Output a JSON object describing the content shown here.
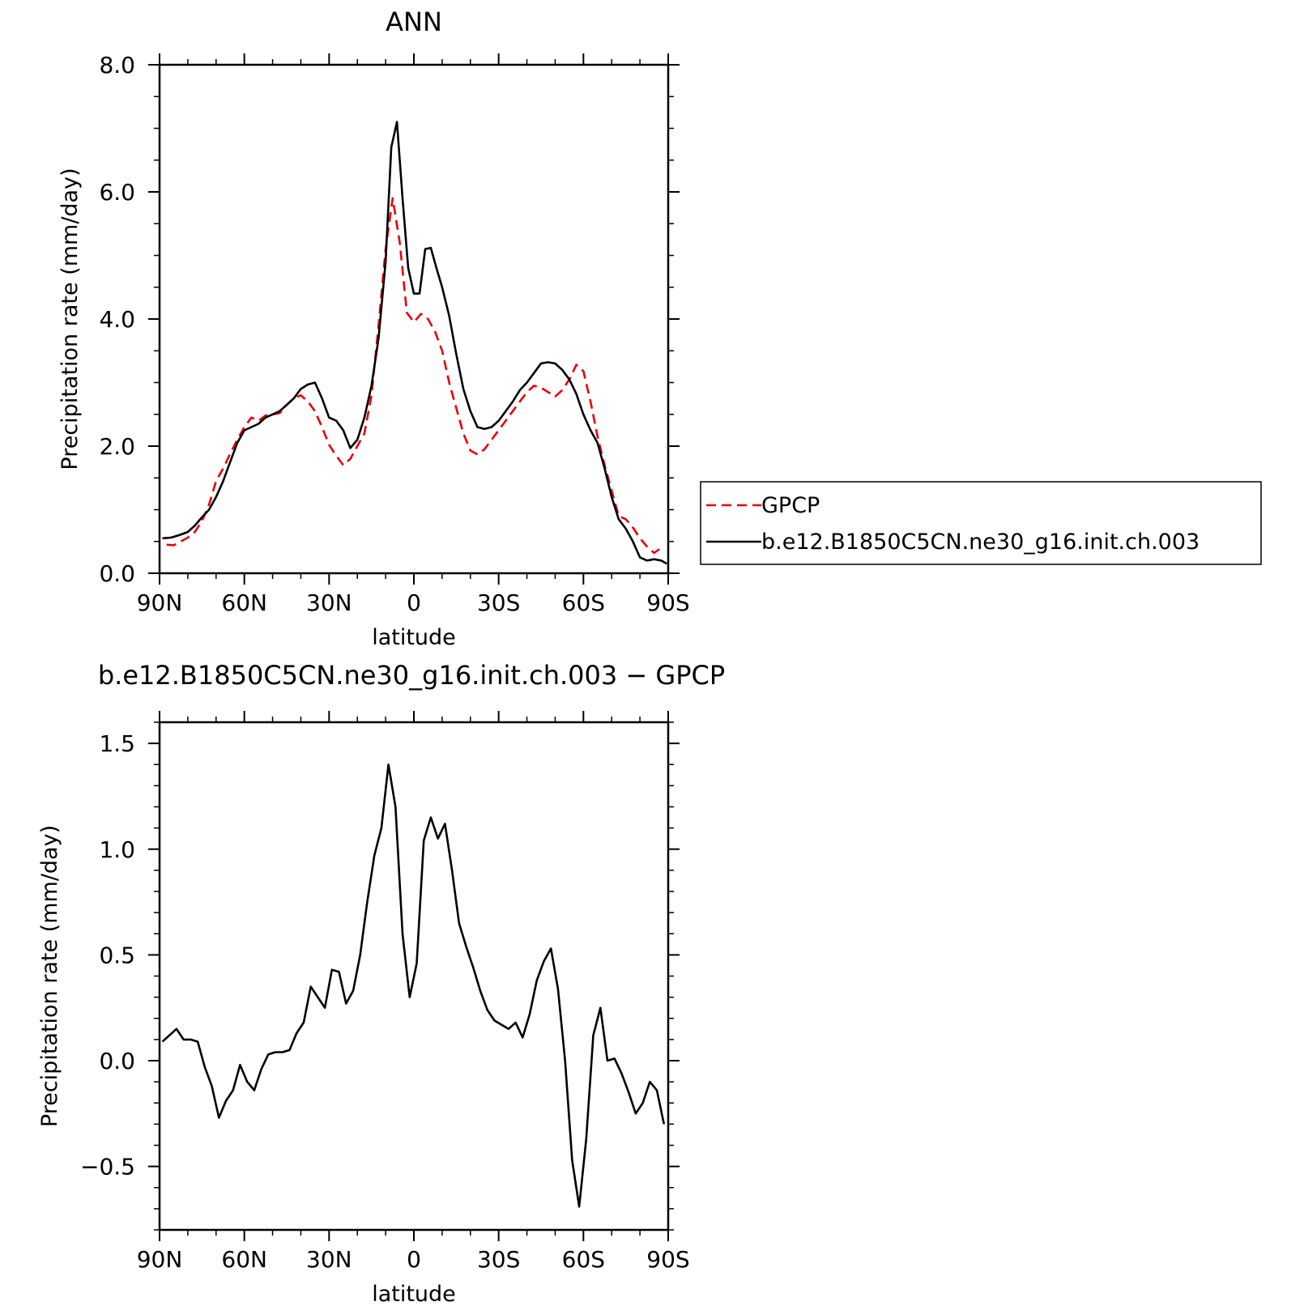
{
  "chart_data": [
    {
      "type": "line",
      "title": "ANN",
      "xlabel": "latitude",
      "ylabel": "Precipitation rate (mm/day)",
      "xlim": [
        90,
        -90
      ],
      "ylim": [
        0,
        8
      ],
      "xticks": [
        {
          "value": 90,
          "label": "90N"
        },
        {
          "value": 60,
          "label": "60N"
        },
        {
          "value": 30,
          "label": "30N"
        },
        {
          "value": 0,
          "label": "0"
        },
        {
          "value": -30,
          "label": "30S"
        },
        {
          "value": -60,
          "label": "60S"
        },
        {
          "value": -90,
          "label": "90S"
        }
      ],
      "yticks": [
        {
          "value": 0,
          "label": "0.0"
        },
        {
          "value": 2,
          "label": "2.0"
        },
        {
          "value": 4,
          "label": "4.0"
        },
        {
          "value": 6,
          "label": "6.0"
        },
        {
          "value": 8,
          "label": "8.0"
        }
      ],
      "legend_position": "right",
      "series": [
        {
          "name": "GPCP",
          "color": "#e8000b",
          "style": "dashed",
          "points": [
            [
              87.5,
              0.45
            ],
            [
              85,
              0.44
            ],
            [
              82.5,
              0.5
            ],
            [
              80,
              0.56
            ],
            [
              77.5,
              0.65
            ],
            [
              75,
              0.82
            ],
            [
              72.5,
              1.08
            ],
            [
              70,
              1.45
            ],
            [
              67.5,
              1.65
            ],
            [
              65,
              1.88
            ],
            [
              62.5,
              2.1
            ],
            [
              60,
              2.3
            ],
            [
              57.5,
              2.45
            ],
            [
              55,
              2.4
            ],
            [
              52.5,
              2.48
            ],
            [
              50,
              2.5
            ],
            [
              47.5,
              2.52
            ],
            [
              45,
              2.65
            ],
            [
              42.5,
              2.75
            ],
            [
              40,
              2.8
            ],
            [
              37.5,
              2.7
            ],
            [
              35,
              2.55
            ],
            [
              32.5,
              2.3
            ],
            [
              30,
              2.02
            ],
            [
              27.5,
              1.85
            ],
            [
              25,
              1.7
            ],
            [
              22.5,
              1.8
            ],
            [
              20,
              2.0
            ],
            [
              17.5,
              2.2
            ],
            [
              15,
              2.8
            ],
            [
              12.5,
              3.9
            ],
            [
              10,
              5.1
            ],
            [
              7.5,
              5.9
            ],
            [
              5,
              5.2
            ],
            [
              2.5,
              4.1
            ],
            [
              0,
              3.95
            ],
            [
              -2.5,
              4.08
            ],
            [
              -5,
              4.0
            ],
            [
              -7.5,
              3.8
            ],
            [
              -10,
              3.5
            ],
            [
              -12.5,
              3.0
            ],
            [
              -15,
              2.6
            ],
            [
              -17.5,
              2.2
            ],
            [
              -20,
              1.93
            ],
            [
              -22.5,
              1.87
            ],
            [
              -25,
              1.95
            ],
            [
              -27.5,
              2.1
            ],
            [
              -30,
              2.25
            ],
            [
              -32.5,
              2.4
            ],
            [
              -35,
              2.55
            ],
            [
              -37.5,
              2.7
            ],
            [
              -40,
              2.85
            ],
            [
              -42.5,
              2.95
            ],
            [
              -45,
              2.92
            ],
            [
              -47.5,
              2.85
            ],
            [
              -50,
              2.78
            ],
            [
              -52.5,
              2.88
            ],
            [
              -55,
              3.05
            ],
            [
              -57.5,
              3.28
            ],
            [
              -60,
              3.18
            ],
            [
              -62.5,
              2.7
            ],
            [
              -65,
              2.15
            ],
            [
              -67.5,
              1.7
            ],
            [
              -70,
              1.3
            ],
            [
              -72.5,
              0.9
            ],
            [
              -75,
              0.85
            ],
            [
              -77.5,
              0.72
            ],
            [
              -80,
              0.55
            ],
            [
              -82.5,
              0.42
            ],
            [
              -85,
              0.32
            ],
            [
              -87.5,
              0.4
            ]
          ]
        },
        {
          "name": "b.e12.B1850C5CN.ne30_g16.init.ch.003",
          "color": "#000000",
          "style": "solid",
          "points": [
            [
              89,
              0.55
            ],
            [
              86,
              0.56
            ],
            [
              83,
              0.6
            ],
            [
              80,
              0.65
            ],
            [
              77.5,
              0.75
            ],
            [
              75,
              0.88
            ],
            [
              72.5,
              1.0
            ],
            [
              70,
              1.2
            ],
            [
              67.5,
              1.45
            ],
            [
              65,
              1.75
            ],
            [
              62.5,
              2.05
            ],
            [
              60,
              2.25
            ],
            [
              57.5,
              2.3
            ],
            [
              55,
              2.35
            ],
            [
              52.5,
              2.45
            ],
            [
              50,
              2.5
            ],
            [
              47.5,
              2.55
            ],
            [
              45,
              2.65
            ],
            [
              42.5,
              2.75
            ],
            [
              40,
              2.9
            ],
            [
              37.5,
              2.97
            ],
            [
              35,
              3.0
            ],
            [
              32.5,
              2.75
            ],
            [
              30,
              2.45
            ],
            [
              27.5,
              2.4
            ],
            [
              25,
              2.25
            ],
            [
              22.5,
              1.97
            ],
            [
              20,
              2.1
            ],
            [
              17.5,
              2.45
            ],
            [
              15,
              2.95
            ],
            [
              12.5,
              3.7
            ],
            [
              10,
              4.9
            ],
            [
              8,
              6.7
            ],
            [
              6,
              7.1
            ],
            [
              4,
              5.9
            ],
            [
              2,
              4.8
            ],
            [
              0,
              4.4
            ],
            [
              -2,
              4.4
            ],
            [
              -4,
              5.1
            ],
            [
              -6,
              5.12
            ],
            [
              -8,
              4.8
            ],
            [
              -10,
              4.5
            ],
            [
              -12.5,
              4.05
            ],
            [
              -15,
              3.45
            ],
            [
              -17.5,
              2.9
            ],
            [
              -20,
              2.55
            ],
            [
              -22.5,
              2.3
            ],
            [
              -25,
              2.27
            ],
            [
              -27.5,
              2.3
            ],
            [
              -30,
              2.4
            ],
            [
              -32.5,
              2.55
            ],
            [
              -35,
              2.7
            ],
            [
              -37.5,
              2.88
            ],
            [
              -40,
              3.0
            ],
            [
              -42.5,
              3.15
            ],
            [
              -45,
              3.3
            ],
            [
              -47.5,
              3.32
            ],
            [
              -50,
              3.3
            ],
            [
              -52.5,
              3.2
            ],
            [
              -55,
              3.05
            ],
            [
              -57.5,
              2.82
            ],
            [
              -60,
              2.5
            ],
            [
              -62.5,
              2.25
            ],
            [
              -65,
              2.05
            ],
            [
              -67.5,
              1.65
            ],
            [
              -70,
              1.2
            ],
            [
              -72.5,
              0.85
            ],
            [
              -75,
              0.7
            ],
            [
              -77.5,
              0.5
            ],
            [
              -80,
              0.25
            ],
            [
              -82.5,
              0.2
            ],
            [
              -85,
              0.22
            ],
            [
              -87.5,
              0.2
            ],
            [
              -89.5,
              0.15
            ]
          ]
        }
      ]
    },
    {
      "type": "line",
      "title": "b.e12.B1850C5CN.ne30_g16.init.ch.003 − GPCP",
      "xlabel": "latitude",
      "ylabel": "Precipitation rate (mm/day)",
      "xlim": [
        90,
        -90
      ],
      "ylim": [
        -0.8,
        1.6
      ],
      "xticks": [
        {
          "value": 90,
          "label": "90N"
        },
        {
          "value": 60,
          "label": "60N"
        },
        {
          "value": 30,
          "label": "30N"
        },
        {
          "value": 0,
          "label": "0"
        },
        {
          "value": -30,
          "label": "30S"
        },
        {
          "value": -60,
          "label": "60S"
        },
        {
          "value": -90,
          "label": "90S"
        }
      ],
      "yticks": [
        {
          "value": -0.5,
          "label": "−0.5"
        },
        {
          "value": 0,
          "label": "0.0"
        },
        {
          "value": 0.5,
          "label": "0.5"
        },
        {
          "value": 1,
          "label": "1.0"
        },
        {
          "value": 1.5,
          "label": "1.5"
        }
      ],
      "series": [
        {
          "color": "#000000",
          "style": "solid",
          "points": [
            [
              89,
              0.09
            ],
            [
              86.5,
              0.12
            ],
            [
              84,
              0.15
            ],
            [
              81.5,
              0.1
            ],
            [
              79,
              0.1
            ],
            [
              76.5,
              0.09
            ],
            [
              74,
              -0.03
            ],
            [
              71.5,
              -0.12
            ],
            [
              69,
              -0.27
            ],
            [
              66.5,
              -0.19
            ],
            [
              64,
              -0.14
            ],
            [
              61.5,
              -0.02
            ],
            [
              59,
              -0.1
            ],
            [
              56.5,
              -0.14
            ],
            [
              54,
              -0.04
            ],
            [
              51.5,
              0.03
            ],
            [
              49,
              0.04
            ],
            [
              46.5,
              0.04
            ],
            [
              44,
              0.05
            ],
            [
              41.5,
              0.13
            ],
            [
              39,
              0.18
            ],
            [
              36.5,
              0.35
            ],
            [
              34,
              0.3
            ],
            [
              31.5,
              0.25
            ],
            [
              29,
              0.43
            ],
            [
              26.5,
              0.42
            ],
            [
              24,
              0.27
            ],
            [
              21.5,
              0.33
            ],
            [
              19,
              0.5
            ],
            [
              16.5,
              0.75
            ],
            [
              14,
              0.97
            ],
            [
              11.5,
              1.1
            ],
            [
              9,
              1.4
            ],
            [
              6.5,
              1.2
            ],
            [
              4,
              0.6
            ],
            [
              1.5,
              0.3
            ],
            [
              -1,
              0.46
            ],
            [
              -3.5,
              1.04
            ],
            [
              -6,
              1.15
            ],
            [
              -8.5,
              1.05
            ],
            [
              -11,
              1.12
            ],
            [
              -13.5,
              0.9
            ],
            [
              -16,
              0.65
            ],
            [
              -18.5,
              0.54
            ],
            [
              -21,
              0.44
            ],
            [
              -23.5,
              0.33
            ],
            [
              -26,
              0.24
            ],
            [
              -28.5,
              0.19
            ],
            [
              -31,
              0.17
            ],
            [
              -33.5,
              0.15
            ],
            [
              -36,
              0.18
            ],
            [
              -38.5,
              0.11
            ],
            [
              -41,
              0.22
            ],
            [
              -43.5,
              0.38
            ],
            [
              -46,
              0.47
            ],
            [
              -48.5,
              0.53
            ],
            [
              -51,
              0.34
            ],
            [
              -53.5,
              0.0
            ],
            [
              -56,
              -0.47
            ],
            [
              -58.5,
              -0.69
            ],
            [
              -61,
              -0.37
            ],
            [
              -63.5,
              0.12
            ],
            [
              -66,
              0.25
            ],
            [
              -68.5,
              0.0
            ],
            [
              -71,
              0.01
            ],
            [
              -73.5,
              -0.06
            ],
            [
              -76,
              -0.15
            ],
            [
              -78.5,
              -0.25
            ],
            [
              -81,
              -0.2
            ],
            [
              -83.5,
              -0.1
            ],
            [
              -86,
              -0.14
            ],
            [
              -88.5,
              -0.3
            ]
          ]
        }
      ]
    }
  ]
}
